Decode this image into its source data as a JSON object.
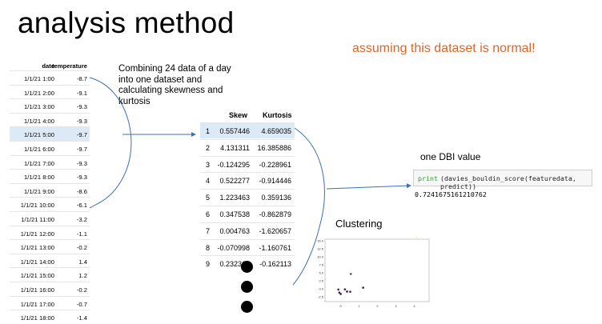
{
  "title": "analysis method",
  "note": "assuming this dataset is normal!",
  "left_table": {
    "headers": {
      "date": "date",
      "temperature": "temperature"
    },
    "rows": [
      {
        "date": "1/1/21 1:00",
        "temp": "-8.7"
      },
      {
        "date": "1/1/21 2:00",
        "temp": "-9.1"
      },
      {
        "date": "1/1/21 3:00",
        "temp": "-9.3"
      },
      {
        "date": "1/1/21 4:00",
        "temp": "-9.3"
      },
      {
        "date": "1/1/21 5:00",
        "temp": "-9.7"
      },
      {
        "date": "1/1/21 6:00",
        "temp": "-9.7"
      },
      {
        "date": "1/1/21 7:00",
        "temp": "-9.3"
      },
      {
        "date": "1/1/21 8:00",
        "temp": "-9.3"
      },
      {
        "date": "1/1/21 9:00",
        "temp": "-8.6"
      },
      {
        "date": "1/1/21 10:00",
        "temp": "-6.1"
      },
      {
        "date": "1/1/21 11:00",
        "temp": "-3.2"
      },
      {
        "date": "1/1/21 12:00",
        "temp": "-1.1"
      },
      {
        "date": "1/1/21 13:00",
        "temp": "-0.2"
      },
      {
        "date": "1/1/21 14:00",
        "temp": "1.4"
      },
      {
        "date": "1/1/21 15:00",
        "temp": "1.2"
      },
      {
        "date": "1/1/21 16:00",
        "temp": "-0.2"
      },
      {
        "date": "1/1/21 17:00",
        "temp": "-0.7"
      },
      {
        "date": "1/1/21 18:00",
        "temp": "-1.4"
      }
    ]
  },
  "description": "Combining 24 data of a day into one dataset and calculating skewness and kurtosis",
  "mid_table": {
    "headers": {
      "skew": "Skew",
      "kurtosis": "Kurtosis"
    },
    "rows": [
      {
        "idx": "1",
        "skew": "0.557446",
        "kurt": "4.659035"
      },
      {
        "idx": "2",
        "skew": "4.131311",
        "kurt": "16.385886"
      },
      {
        "idx": "3",
        "skew": "-0.124295",
        "kurt": "-0.228961"
      },
      {
        "idx": "4",
        "skew": "0.522277",
        "kurt": "-0.914446"
      },
      {
        "idx": "5",
        "skew": "1.223463",
        "kurt": "0.359136"
      },
      {
        "idx": "6",
        "skew": "0.347538",
        "kurt": "-0.862879"
      },
      {
        "idx": "7",
        "skew": "0.004763",
        "kurt": "-1.620657"
      },
      {
        "idx": "8",
        "skew": "-0.070998",
        "kurt": "-1.160761"
      },
      {
        "idx": "9",
        "skew": "0.232369",
        "kurt": "-0.162113"
      }
    ]
  },
  "dbi": {
    "label": "one DBI value",
    "code_print": "print",
    "code_rest": "(davies_bouldin_score(featuredata, predict))",
    "output": "0.7241675161210762"
  },
  "clustering": {
    "label": "Clustering",
    "y_ticks": [
      "15.0",
      "12.5",
      "10.0",
      "7.5",
      "5.0",
      "2.5",
      "0.0",
      "-2.5"
    ],
    "x_ticks": [
      "0",
      "1",
      "2",
      "3",
      "4"
    ],
    "colors": {
      "cluster_a": "#3d1654",
      "cluster_b": "#5a3d78",
      "cluster_c": "#e8de3a"
    }
  }
}
